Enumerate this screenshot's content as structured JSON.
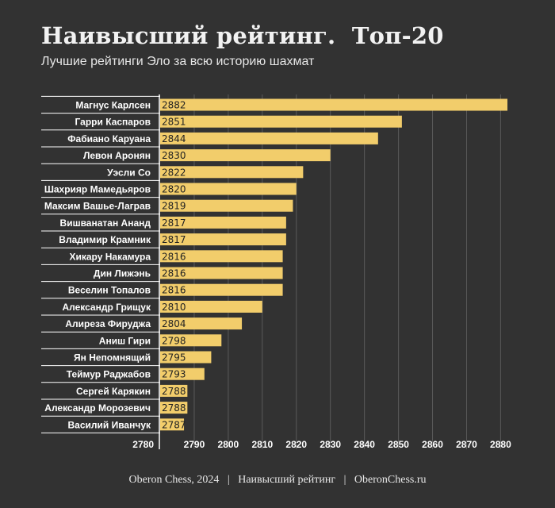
{
  "title": "Наивысший рейтинг.  Топ-20",
  "subtitle": "Лучшие рейтинги Эло за всю историю шахмат",
  "footer": "Oberon Chess, 2024   |   Наивысший рейтинг   |   OberonChess.ru",
  "colors": {
    "background": "#323232",
    "bar": "#f2cd6b",
    "grid": "#5a5a5a",
    "text": "#ffffff"
  },
  "chart_data": {
    "type": "bar",
    "orientation": "horizontal",
    "categories": [
      "Магнус Карлсен",
      "Гарри Каспаров",
      "Фабиано Каруана",
      "Левон Аронян",
      "Уэсли Со",
      "Шахрияр Мамедьяров",
      "Максим Вашье-Лаграв",
      "Вишванатан Ананд",
      "Владимир Крамник",
      "Хикару Накамура",
      "Дин Лижэнь",
      "Веселин Топалов",
      "Александр Грищук",
      "Алиреза Фируджа",
      "Аниш Гири",
      "Ян Непомнящий",
      "Теймур Раджабов",
      "Сергей Карякин",
      "Александр Морозевич",
      "Василий Иванчук"
    ],
    "values": [
      2882,
      2851,
      2844,
      2830,
      2822,
      2820,
      2819,
      2817,
      2817,
      2816,
      2816,
      2816,
      2810,
      2804,
      2798,
      2795,
      2793,
      2788,
      2788,
      2787
    ],
    "xlim": [
      2780,
      2882
    ],
    "xticks": [
      2780,
      2790,
      2800,
      2810,
      2820,
      2830,
      2840,
      2850,
      2860,
      2870,
      2880
    ],
    "grid": true,
    "data_labels": true
  }
}
